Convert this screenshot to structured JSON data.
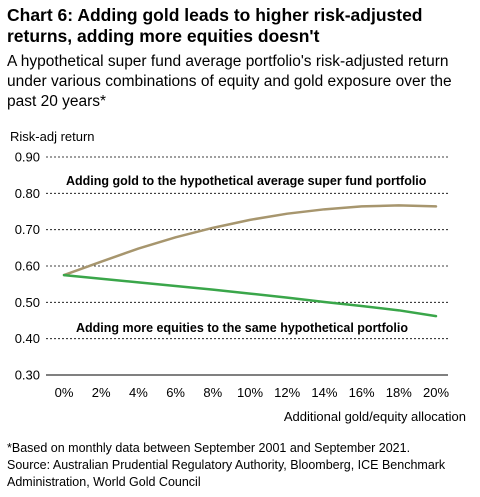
{
  "chart_data": {
    "type": "line",
    "title": "Chart 6: Adding gold leads to higher risk-adjusted returns, adding more equities doesn't",
    "subtitle": "A hypothetical super fund average portfolio's risk-adjusted return under various combinations of equity and gold exposure over the past 20 years*",
    "ylabel": "Risk-adj return",
    "xlabel": "Additional gold/equity allocation",
    "ylim": [
      0.3,
      0.9
    ],
    "yticks": [
      "0.30",
      "0.40",
      "0.50",
      "0.60",
      "0.70",
      "0.80",
      "0.90"
    ],
    "xlim": [
      0,
      20
    ],
    "xticks": [
      "0%",
      "2%",
      "4%",
      "6%",
      "8%",
      "10%",
      "12%",
      "14%",
      "16%",
      "18%",
      "20%"
    ],
    "grid": "horizontal dashed",
    "series": [
      {
        "name": "Adding gold to the hypothetical average super fund portfolio",
        "color": "#a7966e",
        "x": [
          0,
          2,
          4,
          6,
          8,
          10,
          12,
          14,
          16,
          18,
          20
        ],
        "values": [
          0.575,
          0.612,
          0.648,
          0.679,
          0.705,
          0.727,
          0.744,
          0.756,
          0.764,
          0.767,
          0.764
        ]
      },
      {
        "name": "Adding more equities to the same hypothetical portfolio",
        "color": "#3aa64a",
        "x": [
          0,
          2,
          4,
          6,
          8,
          10,
          12,
          14,
          16,
          18,
          20
        ],
        "values": [
          0.575,
          0.565,
          0.555,
          0.545,
          0.535,
          0.524,
          0.513,
          0.501,
          0.49,
          0.478,
          0.462
        ]
      }
    ],
    "notes": [
      "*Based on monthly data between September 2001 and September 2021.",
      "Source: Australian Prudential Regulatory Authority, Bloomberg, ICE Benchmark Administration, World Gold Council"
    ]
  }
}
